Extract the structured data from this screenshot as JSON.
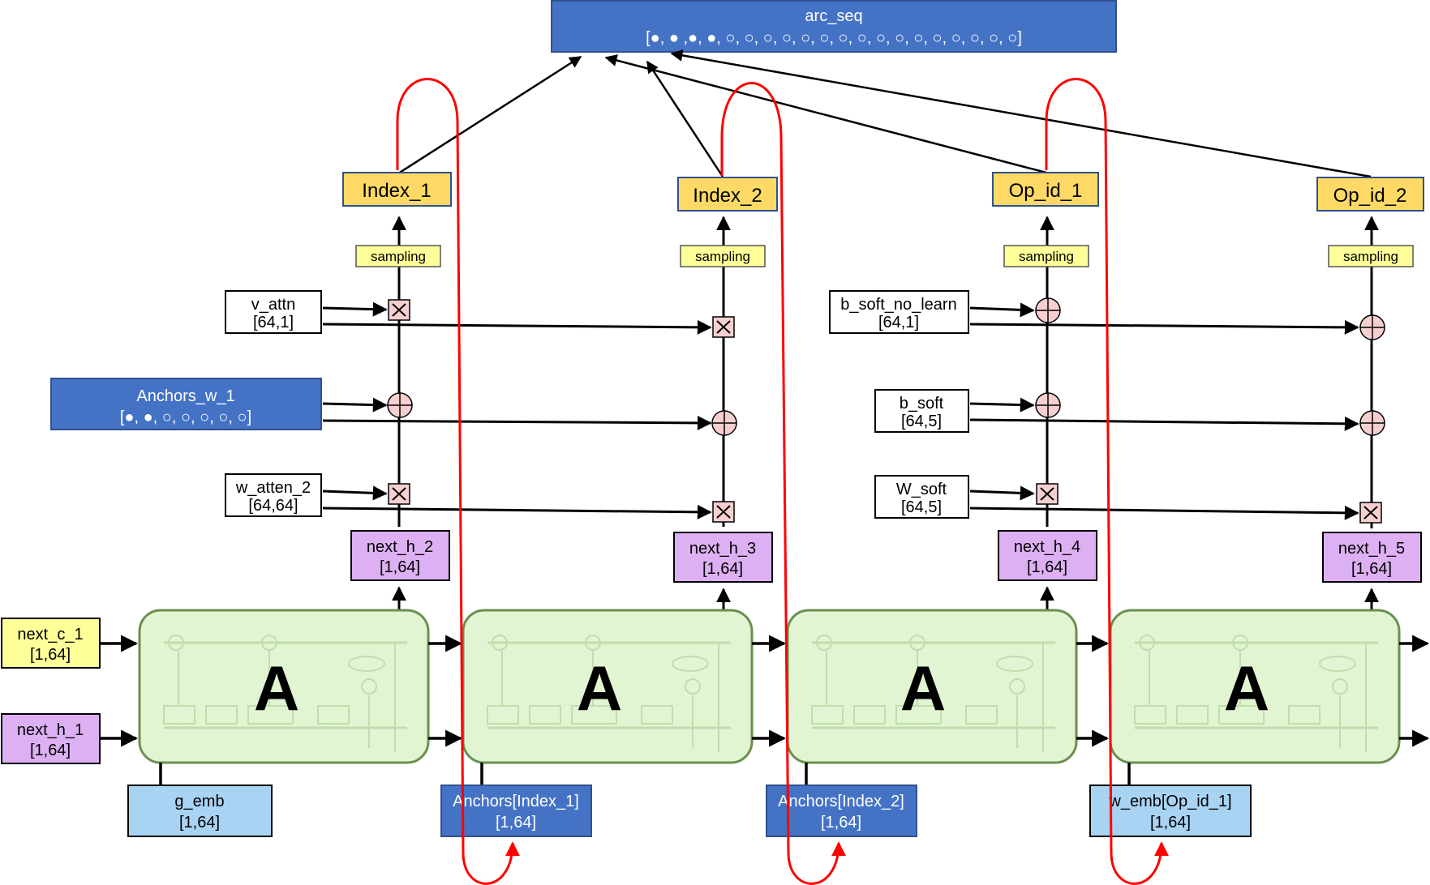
{
  "colors": {
    "dark_blue": "#4472c4",
    "light_blue": "#a9d3f2",
    "yellow_box": "#ffd966",
    "pale_yellow": "#ffff99",
    "purple": "#dcb0f2",
    "cell_green": "#e2f5d3",
    "cell_border": "#6a8f4e",
    "op_pink": "#f7cfd0",
    "feedback_red": "#ff0000"
  },
  "arc_seq": {
    "title": "arc_seq",
    "value": "[●, ● ,●, ●, ○, ○, ○, ○, ○, ○, ○, ○, ○, ○, ○, ○, ○, ○, ○, ○]"
  },
  "outputs": {
    "index_1": "Index_1",
    "index_2": "Index_2",
    "op_id_1": "Op_id_1",
    "op_id_2": "Op_id_2"
  },
  "sampling_label": "sampling",
  "weights": {
    "v_attn": {
      "name": "v_attn",
      "shape": "[64,1]"
    },
    "anchors_w_1": {
      "name": "Anchors_w_1",
      "value": "[●, ●, ○, ○, ○, ○, ○]"
    },
    "w_atten_2": {
      "name": "w_atten_2",
      "shape": "[64,64]"
    },
    "b_soft_no_learn": {
      "name": "b_soft_no_learn",
      "shape": "[64,1]"
    },
    "b_soft": {
      "name": "b_soft",
      "shape": "[64,5]"
    },
    "w_soft": {
      "name": "W_soft",
      "shape": "[64,5]"
    }
  },
  "hidden_states": {
    "next_h_2": {
      "name": "next_h_2",
      "shape": "[1,64]"
    },
    "next_h_3": {
      "name": "next_h_3",
      "shape": "[1,64]"
    },
    "next_h_4": {
      "name": "next_h_4",
      "shape": "[1,64]"
    },
    "next_h_5": {
      "name": "next_h_5",
      "shape": "[1,64]"
    }
  },
  "inputs": {
    "next_c_1": {
      "name": "next_c_1",
      "shape": "[1,64]"
    },
    "next_h_1": {
      "name": "next_h_1",
      "shape": "[1,64]"
    },
    "g_emb": {
      "name": "g_emb",
      "shape": "[1,64]"
    },
    "anchors_index_1": {
      "name": "Anchors[Index_1]",
      "shape": "[1,64]"
    },
    "anchors_index_2": {
      "name": "Anchors[Index_2]",
      "shape": "[1,64]"
    },
    "w_emb_op_id_1": {
      "name": "w_emb[Op_id_1]",
      "shape": "[1,64]"
    }
  },
  "cell_label": "A",
  "ops": {
    "multiply": "×",
    "add": "+"
  },
  "icons": [
    "multiply-op-icon",
    "add-op-icon",
    "arrow-icon"
  ]
}
